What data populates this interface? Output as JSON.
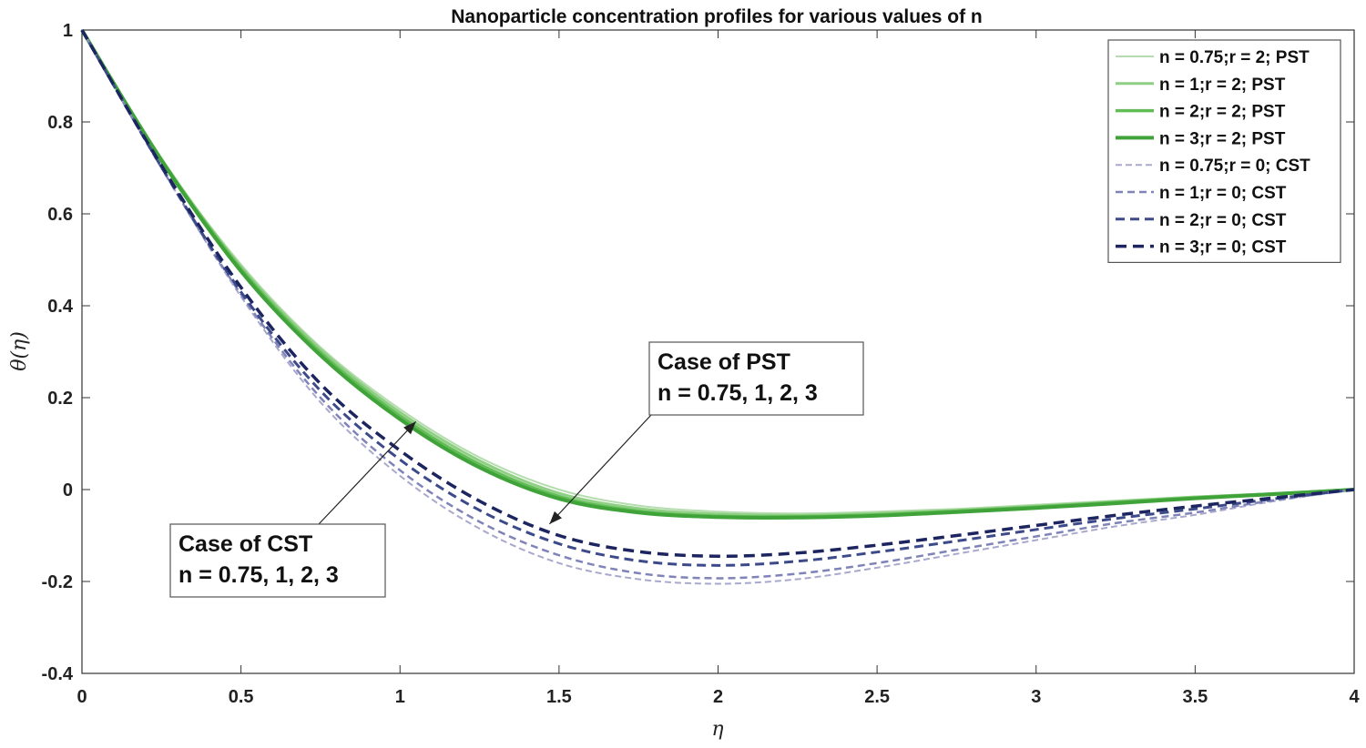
{
  "chart_data": {
    "type": "line",
    "title": "Nanoparticle concentration profiles for various values of n",
    "xlabel": "η",
    "ylabel": "θ(η)",
    "xlim": [
      0,
      4
    ],
    "ylim": [
      -0.4,
      1
    ],
    "xticks": [
      0,
      0.5,
      1,
      1.5,
      2,
      2.5,
      3,
      3.5,
      4
    ],
    "xtick_labels": [
      "0",
      "0.5",
      "1",
      "1.5",
      "2",
      "2.5",
      "3",
      "3.5",
      "4"
    ],
    "yticks": [
      -0.4,
      -0.2,
      0,
      0.2,
      0.4,
      0.6,
      0.8,
      1
    ],
    "ytick_labels": [
      "-0.4",
      "-0.2",
      "0",
      "0.2",
      "0.4",
      "0.6",
      "0.8",
      "1"
    ],
    "grid": false,
    "legend_position": "top-right",
    "series": [
      {
        "name": "n = 0.75;r = 2; PST",
        "color": "#b5dcae",
        "dash": "solid",
        "width": 2,
        "x": [
          0,
          0.25,
          0.5,
          0.75,
          1,
          1.25,
          1.5,
          1.75,
          2,
          2.25,
          2.5,
          2.75,
          3,
          3.25,
          3.5,
          3.75,
          4
        ],
        "y": [
          1,
          0.72,
          0.49,
          0.31,
          0.175,
          0.07,
          0.0,
          -0.035,
          -0.048,
          -0.052,
          -0.048,
          -0.042,
          -0.033,
          -0.024,
          -0.015,
          -0.008,
          0
        ]
      },
      {
        "name": "n = 1;r = 2; PST",
        "color": "#8fcf84",
        "dash": "solid",
        "width": 3,
        "x": [
          0,
          0.25,
          0.5,
          0.75,
          1,
          1.25,
          1.5,
          1.75,
          2,
          2.25,
          2.5,
          2.75,
          3,
          3.25,
          3.5,
          3.75,
          4
        ],
        "y": [
          1,
          0.72,
          0.485,
          0.305,
          0.168,
          0.063,
          -0.008,
          -0.041,
          -0.053,
          -0.056,
          -0.052,
          -0.045,
          -0.036,
          -0.026,
          -0.016,
          -0.009,
          0
        ]
      },
      {
        "name": "n = 2;r = 2; PST",
        "color": "#63bd57",
        "dash": "solid",
        "width": 3.5,
        "x": [
          0,
          0.25,
          0.5,
          0.75,
          1,
          1.25,
          1.5,
          1.75,
          2,
          2.25,
          2.5,
          2.75,
          3,
          3.25,
          3.5,
          3.75,
          4
        ],
        "y": [
          1,
          0.718,
          0.48,
          0.298,
          0.16,
          0.055,
          -0.015,
          -0.047,
          -0.058,
          -0.059,
          -0.055,
          -0.047,
          -0.038,
          -0.028,
          -0.018,
          -0.009,
          0
        ]
      },
      {
        "name": "n = 3;r = 2; PST",
        "color": "#3fa33a",
        "dash": "solid",
        "width": 4,
        "x": [
          0,
          0.25,
          0.5,
          0.75,
          1,
          1.25,
          1.5,
          1.75,
          2,
          2.25,
          2.5,
          2.75,
          3,
          3.25,
          3.5,
          3.75,
          4
        ],
        "y": [
          1,
          0.716,
          0.475,
          0.292,
          0.153,
          0.048,
          -0.02,
          -0.05,
          -0.06,
          -0.061,
          -0.057,
          -0.049,
          -0.04,
          -0.03,
          -0.019,
          -0.01,
          0
        ]
      },
      {
        "name": "n = 0.75;r = 0; CST",
        "color": "#a8a8cc",
        "dash": "7,4",
        "width": 2,
        "x": [
          0,
          0.25,
          0.5,
          0.75,
          1,
          1.25,
          1.5,
          1.75,
          2,
          2.25,
          2.5,
          2.75,
          3,
          3.25,
          3.5,
          3.75,
          4
        ],
        "y": [
          1,
          0.7,
          0.42,
          0.19,
          0.03,
          -0.085,
          -0.16,
          -0.195,
          -0.205,
          -0.195,
          -0.17,
          -0.14,
          -0.11,
          -0.08,
          -0.055,
          -0.025,
          0
        ]
      },
      {
        "name": "n = 1;r = 0; CST",
        "color": "#7f83b8",
        "dash": "8,5",
        "width": 2.5,
        "x": [
          0,
          0.25,
          0.5,
          0.75,
          1,
          1.25,
          1.5,
          1.75,
          2,
          2.25,
          2.5,
          2.75,
          3,
          3.25,
          3.5,
          3.75,
          4
        ],
        "y": [
          1,
          0.7,
          0.425,
          0.2,
          0.042,
          -0.07,
          -0.143,
          -0.182,
          -0.193,
          -0.183,
          -0.16,
          -0.131,
          -0.102,
          -0.073,
          -0.05,
          -0.023,
          0
        ]
      },
      {
        "name": "n = 2;r = 0; CST",
        "color": "#3d4a8a",
        "dash": "10,6",
        "width": 3,
        "x": [
          0,
          0.25,
          0.5,
          0.75,
          1,
          1.25,
          1.5,
          1.75,
          2,
          2.25,
          2.5,
          2.75,
          3,
          3.25,
          3.5,
          3.75,
          4
        ],
        "y": [
          1,
          0.702,
          0.43,
          0.215,
          0.065,
          -0.045,
          -0.118,
          -0.155,
          -0.165,
          -0.156,
          -0.136,
          -0.112,
          -0.087,
          -0.063,
          -0.042,
          -0.02,
          0
        ]
      },
      {
        "name": "n = 3;r = 0; CST",
        "color": "#1c2560",
        "dash": "12,7",
        "width": 3.5,
        "x": [
          0,
          0.25,
          0.5,
          0.75,
          1,
          1.25,
          1.5,
          1.75,
          2,
          2.25,
          2.5,
          2.75,
          3,
          3.25,
          3.5,
          3.75,
          4
        ],
        "y": [
          1,
          0.705,
          0.44,
          0.23,
          0.085,
          -0.025,
          -0.1,
          -0.135,
          -0.145,
          -0.138,
          -0.121,
          -0.1,
          -0.078,
          -0.056,
          -0.036,
          -0.018,
          0
        ]
      }
    ],
    "annotations": [
      {
        "lines": [
          "Case of PST",
          "n = 0.75, 1, 2, 3"
        ],
        "arrow_to": [
          1.47,
          -0.075
        ]
      },
      {
        "lines": [
          "Case of CST",
          "n = 0.75, 1, 2, 3"
        ],
        "arrow_to": [
          1.05,
          0.148
        ]
      }
    ]
  }
}
